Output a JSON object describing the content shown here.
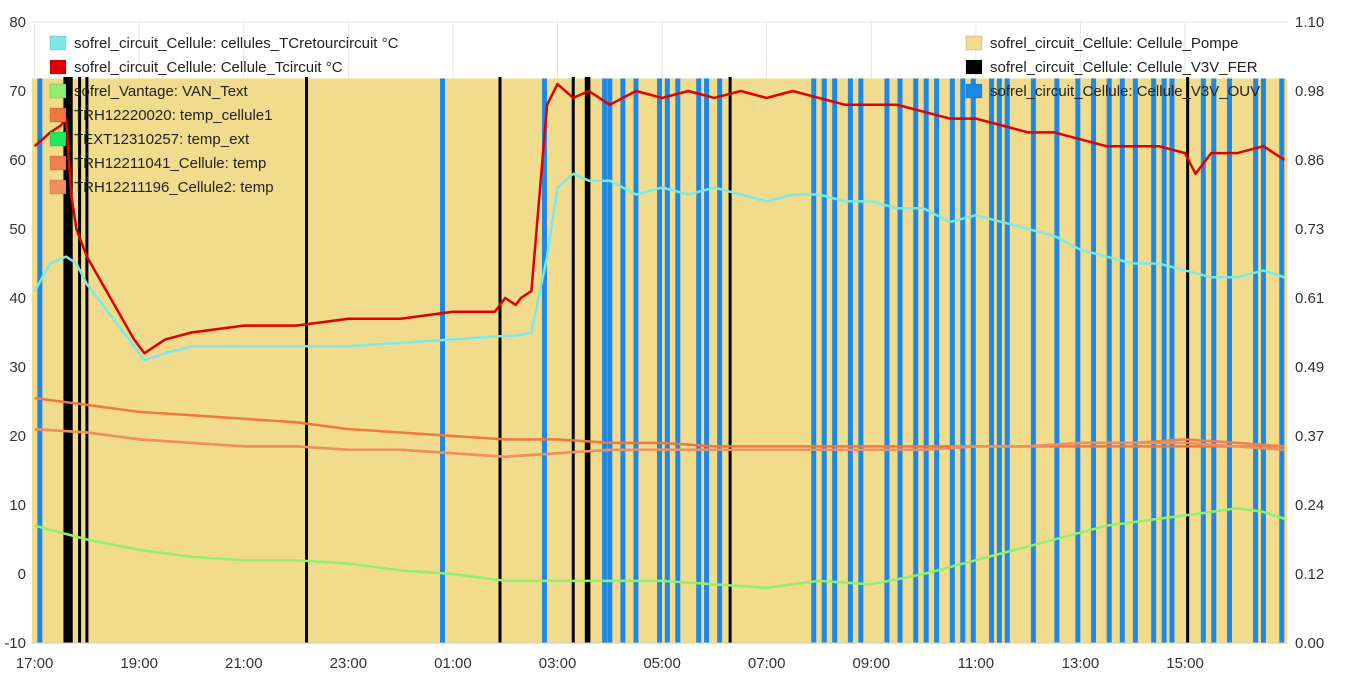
{
  "chart_data": {
    "type": "line",
    "x_domain": [
      16.95,
      40.95
    ],
    "x_ticks": [
      "17:00",
      "19:00",
      "21:00",
      "23:00",
      "01:00",
      "03:00",
      "05:00",
      "07:00",
      "09:00",
      "11:00",
      "13:00",
      "15:00"
    ],
    "x_tick_hours": [
      17,
      19,
      21,
      23,
      25,
      27,
      29,
      31,
      33,
      35,
      37,
      39
    ],
    "left_axis": {
      "ylim": [
        -10,
        80
      ],
      "ticks": [
        -10,
        0,
        10,
        20,
        30,
        40,
        50,
        60,
        70,
        80
      ]
    },
    "right_axis": {
      "ylim": [
        0,
        1.1
      ],
      "ticks": [
        "0.00",
        "0.12",
        "0.24",
        "0.37",
        "0.49",
        "0.61",
        "0.73",
        "0.86",
        "0.98",
        "1.10"
      ]
    },
    "grid": true,
    "legend_left": [
      {
        "name": "sofrel_circuit_Cellule: cellules_TCretourcircuit °C",
        "color": "#7ee8e8"
      },
      {
        "name": "sofrel_circuit_Cellule: Cellule_Tcircuit °C",
        "color": "#e00000"
      },
      {
        "name": "sofrel_Vantage: VAN_Text",
        "color": "#90ee70"
      },
      {
        "name": "TRH12220020: temp_cellule1",
        "color": "#f07840"
      },
      {
        "name": "TEXT12310257: temp_ext",
        "color": "#20e860"
      },
      {
        "name": "TRH12211041_Cellule: temp",
        "color": "#f08050"
      },
      {
        "name": "TRH12211196_Cellule2: temp",
        "color": "#f09060"
      }
    ],
    "legend_right": [
      {
        "name": "sofrel_circuit_Cellule: Cellule_Pompe",
        "color": "#f0dc8c"
      },
      {
        "name": "sofrel_circuit_Cellule: Cellule_V3V_FER",
        "color": "#000000"
      },
      {
        "name": "sofrel_circuit_Cellule: Cellule_V3V_OUV",
        "color": "#1e88e5"
      }
    ],
    "pompe_band": {
      "x_range": [
        16.95,
        40.95
      ],
      "right_value": 1.0
    },
    "v3v_fer_events": [
      17.58,
      17.62,
      17.66,
      17.7,
      17.86,
      18.0,
      22.2,
      25.9,
      27.3,
      27.55,
      27.6,
      30.3,
      39.05
    ],
    "v3v_ouv_events": [
      17.1,
      24.8,
      26.75,
      27.9,
      28.0,
      28.25,
      28.5,
      28.95,
      29.1,
      29.3,
      29.7,
      29.85,
      30.1,
      31.9,
      32.1,
      32.3,
      32.6,
      32.8,
      33.3,
      33.55,
      33.85,
      34.05,
      34.25,
      34.55,
      34.75,
      34.95,
      35.3,
      35.45,
      35.6,
      36.1,
      36.55,
      36.95,
      37.25,
      37.55,
      37.8,
      38.05,
      38.4,
      38.6,
      38.75,
      39.35,
      39.55,
      39.85,
      40.35,
      40.5,
      40.85
    ],
    "series": [
      {
        "name": "sofrel_circuit_Cellule: cellules_TCretourcircuit °C",
        "color": "#7ee8e8",
        "axis": "left",
        "x": [
          17.0,
          17.3,
          17.6,
          17.8,
          18.0,
          18.3,
          18.6,
          18.9,
          19.1,
          19.5,
          20.0,
          21.0,
          22.0,
          23.0,
          24.0,
          25.0,
          26.0,
          26.2,
          26.5,
          26.8,
          27.0,
          27.3,
          27.6,
          28.0,
          28.5,
          29.0,
          29.5,
          30.0,
          30.5,
          31.0,
          31.5,
          32.0,
          32.5,
          33.0,
          33.5,
          34.0,
          34.5,
          35.0,
          35.5,
          36.0,
          36.5,
          37.0,
          37.5,
          38.0,
          38.5,
          39.0,
          39.5,
          40.0,
          40.5,
          40.9
        ],
        "y": [
          41,
          45,
          46,
          45,
          42,
          39,
          36,
          33,
          31,
          32,
          33,
          33,
          33,
          33,
          33.5,
          34,
          34.5,
          34.5,
          35,
          46,
          56,
          58,
          57,
          57,
          55,
          56,
          55,
          56,
          55,
          54,
          55,
          55,
          54,
          54,
          53,
          53,
          51,
          52,
          51,
          50,
          49,
          47,
          46,
          45,
          45,
          44,
          43,
          43,
          44,
          43
        ]
      },
      {
        "name": "sofrel_circuit_Cellule: Cellule_Tcircuit °C",
        "color": "#e00000",
        "axis": "left",
        "x": [
          17.0,
          17.3,
          17.5,
          17.6,
          17.7,
          17.8,
          18.0,
          18.3,
          18.6,
          18.9,
          19.1,
          19.5,
          20.0,
          21.0,
          22.0,
          23.0,
          24.0,
          25.0,
          25.8,
          26.0,
          26.2,
          26.3,
          26.5,
          26.8,
          27.0,
          27.3,
          27.6,
          28.0,
          28.5,
          29.0,
          29.5,
          30.0,
          30.5,
          31.0,
          31.5,
          32.0,
          32.5,
          33.0,
          33.5,
          34.0,
          34.5,
          35.0,
          35.5,
          36.0,
          36.5,
          37.0,
          37.5,
          38.0,
          38.5,
          39.0,
          39.2,
          39.5,
          40.0,
          40.5,
          40.9
        ],
        "y": [
          62,
          64,
          65,
          66,
          55,
          50,
          46,
          42,
          38,
          34,
          32,
          34,
          35,
          36,
          36,
          37,
          37,
          38,
          38,
          40,
          39,
          40,
          41,
          68,
          71,
          69,
          70,
          68,
          70,
          69,
          70,
          69,
          70,
          69,
          70,
          69,
          68,
          68,
          68,
          67,
          66,
          66,
          65,
          64,
          64,
          63,
          62,
          62,
          62,
          61,
          58,
          61,
          61,
          62,
          60
        ]
      },
      {
        "name": "sofrel_Vantage: VAN_Text",
        "color": "#90ee70",
        "axis": "left",
        "x": [
          17.0,
          18.0,
          19.0,
          20.0,
          21.0,
          22.0,
          23.0,
          24.0,
          25.0,
          26.0,
          27.0,
          28.0,
          29.0,
          30.0,
          31.0,
          32.0,
          33.0,
          34.0,
          35.0,
          36.0,
          37.0,
          37.5,
          38.0,
          38.5,
          39.0,
          39.5,
          40.0,
          40.5,
          40.9
        ],
        "y": [
          7,
          5,
          3.5,
          2.5,
          2,
          2,
          1.5,
          0.5,
          0,
          -1,
          -1,
          -1,
          -1,
          -1.5,
          -2,
          -1,
          -1.5,
          0,
          2,
          4,
          6,
          7,
          7.5,
          8,
          8.5,
          9,
          9.5,
          9,
          8
        ]
      },
      {
        "name": "TRH12220020: temp_cellule1",
        "color": "#f07840",
        "axis": "left",
        "x": [
          17.0,
          18.0,
          19.0,
          20.0,
          21.0,
          22.0,
          23.0,
          24.0,
          25.0,
          26.0,
          27.0,
          28.0,
          29.0,
          30.0,
          31.0,
          32.0,
          33.0,
          34.0,
          35.0,
          36.0,
          37.0,
          38.0,
          39.0,
          40.0,
          40.9
        ],
        "y": [
          25.5,
          24.5,
          23.5,
          23,
          22.5,
          22,
          21,
          20.5,
          20,
          19.5,
          19.5,
          19,
          19,
          18.5,
          18.5,
          18.5,
          18.5,
          18.5,
          18.5,
          18.5,
          18.5,
          18.5,
          18.5,
          18.5,
          18.5
        ]
      },
      {
        "name": "TEXT12310257: temp_ext",
        "color": "#20e860",
        "axis": "left",
        "x": [],
        "y": []
      },
      {
        "name": "TRH12211041_Cellule: temp",
        "color": "#f08050",
        "axis": "left",
        "x": [
          17.0,
          18.0,
          19.0,
          20.0,
          21.0,
          22.0,
          23.0,
          24.0,
          25.0,
          26.0,
          27.0,
          28.0,
          29.0,
          30.0,
          31.0,
          32.0,
          33.0,
          34.0,
          35.0,
          36.0,
          37.0,
          38.0,
          39.0,
          40.0,
          40.9
        ],
        "y": [
          21,
          20.5,
          19.5,
          19,
          18.5,
          18.5,
          18,
          18,
          17.5,
          17,
          17.5,
          18,
          18,
          18,
          18,
          18,
          18,
          18,
          18.5,
          18.5,
          19,
          19,
          19.5,
          19,
          18.5
        ]
      },
      {
        "name": "TRH12211196_Cellule2: temp",
        "color": "#f09060",
        "axis": "left",
        "x": [
          17.0,
          18.0,
          19.0,
          20.0,
          21.0,
          22.0,
          23.0,
          24.0,
          25.0,
          26.0,
          27.0,
          28.0,
          29.0,
          30.0,
          31.0,
          32.0,
          33.0,
          34.0,
          35.0,
          36.0,
          37.0,
          38.0,
          39.0,
          40.0,
          40.9
        ],
        "y": [
          21,
          20.5,
          19.5,
          19,
          18.5,
          18.5,
          18,
          18,
          17.5,
          17,
          17.5,
          18,
          18,
          18,
          18,
          18,
          18,
          18,
          18.5,
          18.5,
          19,
          19,
          19,
          18.5,
          18
        ]
      }
    ]
  }
}
